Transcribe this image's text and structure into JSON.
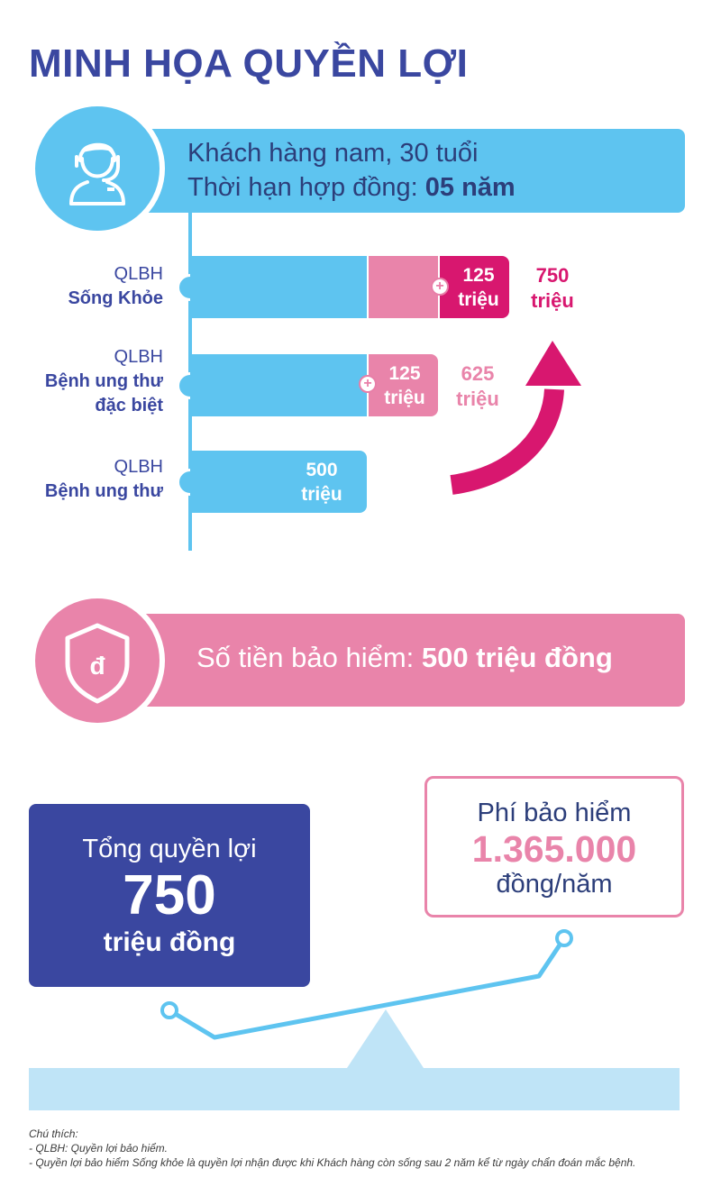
{
  "title": "MINH HỌA QUYỀN LỢI",
  "customer": {
    "line1": "Khách hàng nam, 30 tuổi",
    "term_label": "Thời hạn hợp đồng: ",
    "term_value": "05 năm"
  },
  "benefits": [
    {
      "label_prefix": "QLBH",
      "label_lines": [
        "Sống Khỏe"
      ],
      "segment_value": "125",
      "segment_unit": "triệu",
      "total_value": "750",
      "total_unit": "triệu"
    },
    {
      "label_prefix": "QLBH",
      "label_lines": [
        "Bệnh ung thư",
        "đặc biệt"
      ],
      "segment_value": "125",
      "segment_unit": "triệu",
      "total_value": "625",
      "total_unit": "triệu"
    },
    {
      "label_prefix": "QLBH",
      "label_lines": [
        "Bệnh ung thư"
      ],
      "segment_value": "500",
      "segment_unit": "triệu"
    }
  ],
  "sum_insured": {
    "label": "Số tiền bảo hiểm: ",
    "value": "500 triệu đồng"
  },
  "total_benefit": {
    "label": "Tổng quyền lợi",
    "value": "750",
    "unit": "triệu đồng"
  },
  "premium": {
    "label": "Phí bảo hiểm",
    "value": "1.365.000",
    "unit": "đồng/năm"
  },
  "notes": {
    "heading": "Chú thích:",
    "items": [
      "- QLBH: Quyền lợi bảo hiểm.",
      "- Quyền lợi bảo hiểm Sống khỏe là quyền lợi nhận được khi Khách hàng còn sống sau 2 năm kể từ ngày chẩn đoán mắc bệnh."
    ]
  },
  "icons": {
    "customer": "person-headset-icon",
    "shield": "shield-dong-icon",
    "plus": "plus-icon",
    "arrow": "curved-arrow-up-icon"
  },
  "currency_symbol": "đ",
  "colors": {
    "navy": "#3a47a0",
    "sky": "#5ec4f0",
    "pink": "#e984aa",
    "magenta": "#d8176f",
    "light_blue": "#bfe4f7"
  }
}
